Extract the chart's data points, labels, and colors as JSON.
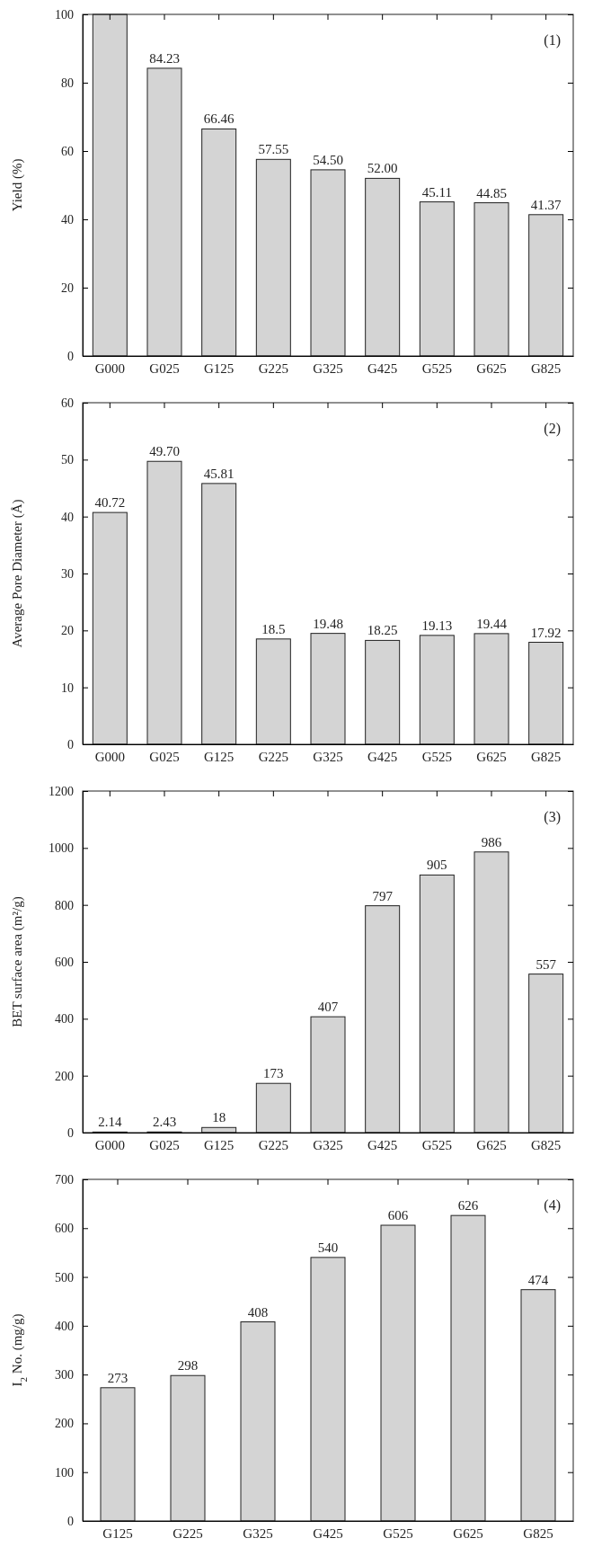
{
  "chart_data": [
    {
      "type": "bar",
      "ylabel": "Yield (%)",
      "annotations": [
        "(1)"
      ],
      "categories": [
        "G000",
        "G025",
        "G125",
        "G225",
        "G325",
        "G425",
        "G525",
        "G625",
        "G825"
      ],
      "series": [
        {
          "color": "#d4d4d4",
          "values": [
            100,
            84.23,
            66.46,
            57.55,
            54.5,
            52.0,
            45.11,
            44.85,
            41.37
          ],
          "value_labels": [
            null,
            "84.23",
            "66.46",
            "57.55",
            "54.50",
            "52.00",
            "45.11",
            "44.85",
            "41.37"
          ]
        }
      ],
      "ylim": [
        0,
        100
      ],
      "yticks": [
        0,
        20,
        40,
        60,
        80,
        100
      ]
    },
    {
      "type": "bar",
      "ylabel": "Average Pore Diameter (Å)",
      "annotations": [
        "(2)"
      ],
      "categories": [
        "G000",
        "G025",
        "G125",
        "G225",
        "G325",
        "G425",
        "G525",
        "G625",
        "G825"
      ],
      "series": [
        {
          "color": "#d4d4d4",
          "values": [
            40.72,
            49.7,
            45.81,
            18.5,
            19.48,
            18.25,
            19.13,
            19.44,
            17.92
          ],
          "value_labels": [
            "40.72",
            "49.70",
            "45.81",
            "18.5",
            "19.48",
            "18.25",
            "19.13",
            "19.44",
            "17.92"
          ]
        }
      ],
      "ylim": [
        0,
        60
      ],
      "yticks": [
        0,
        10,
        20,
        30,
        40,
        50,
        60
      ]
    },
    {
      "type": "bar",
      "ylabel": "BET surface area (m²/g)",
      "annotations": [
        "(3)"
      ],
      "categories": [
        "G000",
        "G025",
        "G125",
        "G225",
        "G325",
        "G425",
        "G525",
        "G625",
        "G825"
      ],
      "series": [
        {
          "color": "#d4d4d4",
          "values": [
            2.14,
            2.43,
            18,
            173,
            407,
            797,
            905,
            986,
            557
          ],
          "value_labels": [
            "2.14",
            "2.43",
            "18",
            "173",
            "407",
            "797",
            "905",
            "986",
            "557"
          ]
        }
      ],
      "ylim": [
        0,
        1200
      ],
      "yticks": [
        0,
        200,
        400,
        600,
        800,
        1000,
        1200
      ]
    },
    {
      "type": "bar",
      "ylabel": "I$_{2}$ No. (mg/g)",
      "annotations": [
        "(4)"
      ],
      "categories": [
        "G125",
        "G225",
        "G325",
        "G425",
        "G525",
        "G625",
        "G825"
      ],
      "series": [
        {
          "color": "#d4d4d4",
          "values": [
            273,
            298,
            408,
            540,
            606,
            626,
            474
          ],
          "value_labels": [
            "273",
            "298",
            "408",
            "540",
            "606",
            "626",
            "474"
          ]
        }
      ],
      "ylim": [
        0,
        700
      ],
      "yticks": [
        0,
        100,
        200,
        300,
        400,
        500,
        600,
        700
      ]
    }
  ]
}
